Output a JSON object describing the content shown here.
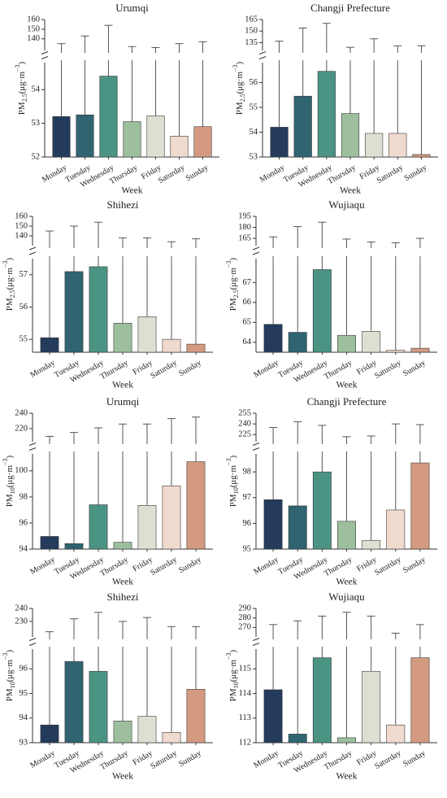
{
  "colors": [
    "#243b5c",
    "#2f6470",
    "#4b9383",
    "#9dbf9e",
    "#dedfd3",
    "#f0d9ce",
    "#d49a80"
  ],
  "chart_data": [
    {
      "type": "bar",
      "title": "Urumqi",
      "ylabel_main": "PM",
      "ylabel_sub": "2.5",
      "ylabel_unit": "(μg·m",
      "ylabel_sup": "−3",
      "ylabel_close": ")",
      "xlabel": "Week",
      "categories": [
        "Monday",
        "Tuesday",
        "Wednesday",
        "Thursday",
        "Friday",
        "Saturday",
        "Sunday"
      ],
      "values": [
        53.2,
        53.25,
        54.4,
        53.05,
        53.22,
        52.62,
        52.9
      ],
      "error_upper": [
        135,
        143,
        154,
        132,
        131,
        135,
        137
      ],
      "lower_range": [
        52,
        54.8
      ],
      "lower_ticks": [
        52,
        53,
        54
      ],
      "upper_range": [
        128,
        160
      ],
      "upper_ticks": [
        140,
        150,
        160
      ]
    },
    {
      "type": "bar",
      "title": "Changji Prefecture",
      "ylabel_main": "PM",
      "ylabel_sub": "2.5",
      "ylabel_unit": "(μg·m",
      "ylabel_sup": "−3",
      "ylabel_close": ")",
      "xlabel": "Week",
      "categories": [
        "Monday",
        "Tuesday",
        "Wednesday",
        "Thursday",
        "Friday",
        "Saturday",
        "Sunday"
      ],
      "values": [
        54.2,
        55.45,
        56.45,
        54.75,
        53.95,
        53.95,
        53.1
      ],
      "error_upper": [
        137,
        154,
        160,
        129,
        140,
        131,
        131
      ],
      "lower_range": [
        53,
        56.8
      ],
      "lower_ticks": [
        53,
        54,
        55,
        56
      ],
      "upper_range": [
        125,
        165
      ],
      "upper_ticks": [
        135,
        150,
        165
      ]
    },
    {
      "type": "bar",
      "title": "Shihezi",
      "ylabel_main": "PM",
      "ylabel_sub": "2.5",
      "ylabel_unit": "(μg·m",
      "ylabel_sup": "−3",
      "ylabel_close": ")",
      "xlabel": "Week",
      "categories": [
        "Monday",
        "Tuesday",
        "Wednesday",
        "Thursday",
        "Friday",
        "Saturday",
        "Sunday"
      ],
      "values": [
        55.05,
        57.1,
        57.25,
        55.5,
        55.7,
        55.0,
        54.85
      ],
      "error_upper": [
        145,
        150,
        154,
        138,
        138,
        134,
        137
      ],
      "lower_range": [
        54.6,
        57.5
      ],
      "lower_ticks": [
        55,
        56,
        57
      ],
      "upper_range": [
        130,
        160
      ],
      "upper_ticks": [
        140,
        150,
        160
      ]
    },
    {
      "type": "bar",
      "title": "Wujiaqu",
      "ylabel_main": "PM",
      "ylabel_sub": "2.5",
      "ylabel_unit": "(μg·m",
      "ylabel_sup": "−3",
      "ylabel_close": ")",
      "xlabel": "Week",
      "categories": [
        "Monday",
        "Tuesday",
        "Wednesday",
        "Thursday",
        "Friday",
        "Saturday",
        "Sunday"
      ],
      "values": [
        64.9,
        64.5,
        67.65,
        64.35,
        64.55,
        63.6,
        63.7
      ],
      "error_upper": [
        167,
        181,
        187,
        164,
        160,
        159,
        165
      ],
      "lower_range": [
        63.5,
        68.2
      ],
      "lower_ticks": [
        64,
        65,
        66,
        67
      ],
      "upper_range": [
        155,
        195
      ],
      "upper_ticks": [
        165,
        180,
        195
      ]
    },
    {
      "type": "bar",
      "title": "Urumqi",
      "ylabel_main": "PM",
      "ylabel_sub": "10",
      "ylabel_unit": "(μg·m",
      "ylabel_sup": "−3",
      "ylabel_close": ")",
      "xlabel": "Week",
      "categories": [
        "Monday",
        "Tuesday",
        "Wednesday",
        "Thursday",
        "Friday",
        "Saturday",
        "Sunday"
      ],
      "values": [
        94.97,
        94.42,
        97.4,
        94.52,
        97.35,
        98.85,
        100.7
      ],
      "error_upper": [
        210,
        215,
        221,
        226,
        226,
        233,
        235
      ],
      "lower_range": [
        94,
        101.3
      ],
      "lower_ticks": [
        94,
        96,
        98,
        100
      ],
      "upper_range": [
        203,
        240
      ],
      "upper_ticks": [
        220,
        240
      ]
    },
    {
      "type": "bar",
      "title": "Changji Prefecture",
      "ylabel_main": "PM",
      "ylabel_sub": "10",
      "ylabel_unit": "(μg·m",
      "ylabel_sup": "−3",
      "ylabel_close": ")",
      "xlabel": "Week",
      "categories": [
        "Monday",
        "Tuesday",
        "Wednesday",
        "Thursday",
        "Friday",
        "Saturday",
        "Sunday"
      ],
      "values": [
        96.92,
        96.68,
        98.0,
        96.08,
        95.33,
        96.52,
        98.35
      ],
      "error_upper": [
        235,
        243,
        238,
        222,
        223,
        240,
        239
      ],
      "lower_range": [
        95,
        98.7
      ],
      "lower_ticks": [
        95,
        96,
        97,
        98
      ],
      "upper_range": [
        215,
        255
      ],
      "upper_ticks": [
        225,
        240,
        255
      ]
    },
    {
      "type": "bar",
      "title": "Shihezi",
      "ylabel_main": "PM",
      "ylabel_sub": "10",
      "ylabel_unit": "(μg·m",
      "ylabel_sup": "−3",
      "ylabel_close": ")",
      "xlabel": "Week",
      "categories": [
        "Monday",
        "Tuesday",
        "Wednesday",
        "Thursday",
        "Friday",
        "Saturday",
        "Sunday"
      ],
      "values": [
        93.72,
        96.3,
        95.9,
        93.88,
        94.07,
        93.42,
        95.17
      ],
      "error_upper": [
        222,
        232,
        237,
        230,
        233,
        226,
        226
      ],
      "lower_range": [
        93,
        96.8
      ],
      "lower_ticks": [
        93,
        94,
        95,
        96
      ],
      "upper_range": [
        218,
        240
      ],
      "upper_ticks": [
        230,
        240
      ]
    },
    {
      "type": "bar",
      "title": "Wujiaqu",
      "ylabel_main": "PM",
      "ylabel_sub": "10",
      "ylabel_unit": "(μg·m",
      "ylabel_sup": "−3",
      "ylabel_close": ")",
      "xlabel": "Week",
      "categories": [
        "Monday",
        "Tuesday",
        "Wednesday",
        "Thursday",
        "Friday",
        "Saturday",
        "Sunday"
      ],
      "values": [
        114.15,
        112.35,
        115.45,
        112.2,
        114.9,
        112.72,
        115.45
      ],
      "error_upper": [
        273,
        277,
        282,
        286,
        282,
        264,
        273
      ],
      "lower_range": [
        112,
        115.8
      ],
      "lower_ticks": [
        112,
        113,
        114,
        115
      ],
      "upper_range": [
        260,
        290
      ],
      "upper_ticks": [
        270,
        280,
        290
      ]
    }
  ]
}
